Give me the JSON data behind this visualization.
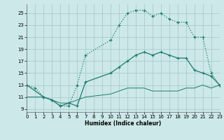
{
  "xlabel": "Humidex (Indice chaleur)",
  "bg_color": "#cce8e8",
  "grid_color": "#aacccc",
  "line_color": "#1e7a6e",
  "line1_x": [
    0,
    1,
    2,
    3,
    4,
    5,
    6,
    7,
    10,
    11,
    12,
    13,
    14,
    15,
    16,
    17,
    18,
    19,
    20,
    21,
    22,
    23
  ],
  "line1_y": [
    13,
    12.5,
    11,
    10.5,
    9.5,
    9.5,
    13,
    18,
    20.5,
    23,
    25,
    25.5,
    25.5,
    24.5,
    25,
    24,
    23.5,
    23.5,
    21,
    21,
    15,
    13
  ],
  "line2_x": [
    0,
    2,
    3,
    4,
    5,
    6,
    7,
    10,
    11,
    12,
    13,
    14,
    15,
    16,
    17,
    18,
    19,
    20,
    21,
    22,
    23
  ],
  "line2_y": [
    13,
    11,
    10.5,
    9.5,
    10,
    9.5,
    13.5,
    15,
    16,
    17,
    18,
    18.5,
    18,
    18.5,
    18,
    17.5,
    17.5,
    15.5,
    15,
    14.5,
    13
  ],
  "line3_x": [
    0,
    2,
    3,
    4,
    5,
    6,
    7,
    10,
    11,
    12,
    13,
    14,
    15,
    16,
    17,
    18,
    19,
    20,
    21,
    22,
    23
  ],
  "line3_y": [
    11,
    11,
    10.5,
    10,
    10,
    10.5,
    11,
    11.5,
    12,
    12.5,
    12.5,
    12.5,
    12,
    12,
    12,
    12,
    12.5,
    12.5,
    13,
    12.5,
    13
  ],
  "xlim": [
    0,
    23
  ],
  "ylim": [
    8.5,
    26.5
  ],
  "yticks": [
    9,
    11,
    13,
    15,
    17,
    19,
    21,
    23,
    25
  ],
  "xticks": [
    0,
    1,
    2,
    3,
    4,
    5,
    6,
    7,
    8,
    9,
    10,
    11,
    12,
    13,
    14,
    15,
    16,
    17,
    18,
    19,
    20,
    21,
    22,
    23
  ]
}
